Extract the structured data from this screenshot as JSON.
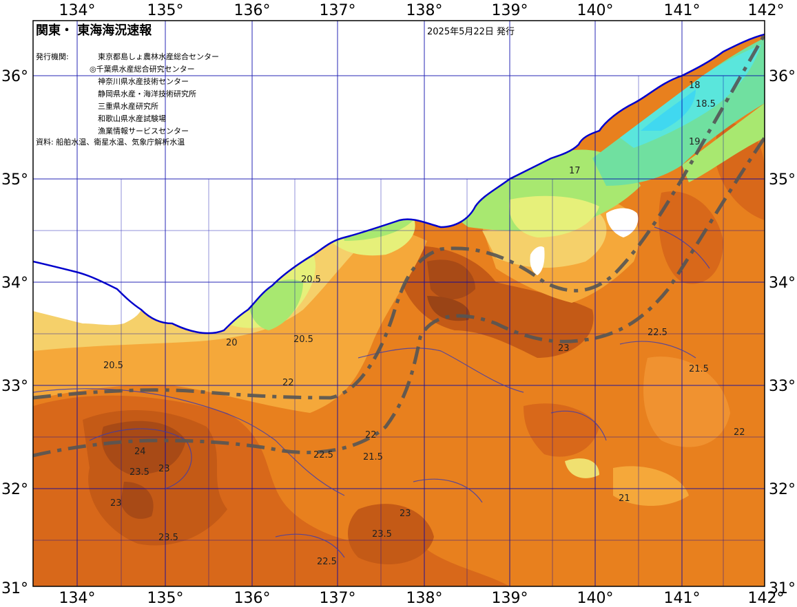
{
  "title": "関東・ 東海海況速報",
  "issue_date": "2025年5月22日 発行",
  "issuer_label": "発行機関:",
  "issuers": [
    "東京都島しょ農林水産総合センター",
    "◎千葉県水産総合研究センター",
    "神奈川県水産技術センター",
    "静岡県水産・海洋技術研究所",
    "三重県水産研究所",
    "和歌山県水産試験場",
    "漁業情報サービスセンター"
  ],
  "sources": "資料: 船舶水温、衛星水温、気象庁解析水温",
  "lon_labels": [
    "134°",
    "135°",
    "136°",
    "137°",
    "138°",
    "139°",
    "140°",
    "141°",
    "142°"
  ],
  "lat_labels": [
    "36°",
    "35°",
    "34°",
    "33°",
    "32°",
    "31°"
  ],
  "isotherm_labels": [
    "23.5",
    "24",
    "23",
    "22.5",
    "22",
    "21.5",
    "21",
    "20.5",
    "20",
    "19",
    "18.5",
    "18",
    "17"
  ],
  "colors": {
    "land": "#ffffff",
    "sst_24": "#a04818",
    "sst_23_5": "#c05a16",
    "sst_23": "#e0741a",
    "sst_22": "#ef8a22",
    "sst_21": "#f5a83a",
    "sst_20": "#f5d06a",
    "sst_19": "#f0f07a",
    "sst_18": "#a8e870",
    "sst_17": "#70e8a0",
    "sst_16": "#50e8e0",
    "coast_line": "#0000cc",
    "grid": "#0000aa",
    "kuroshio": "#555555"
  }
}
